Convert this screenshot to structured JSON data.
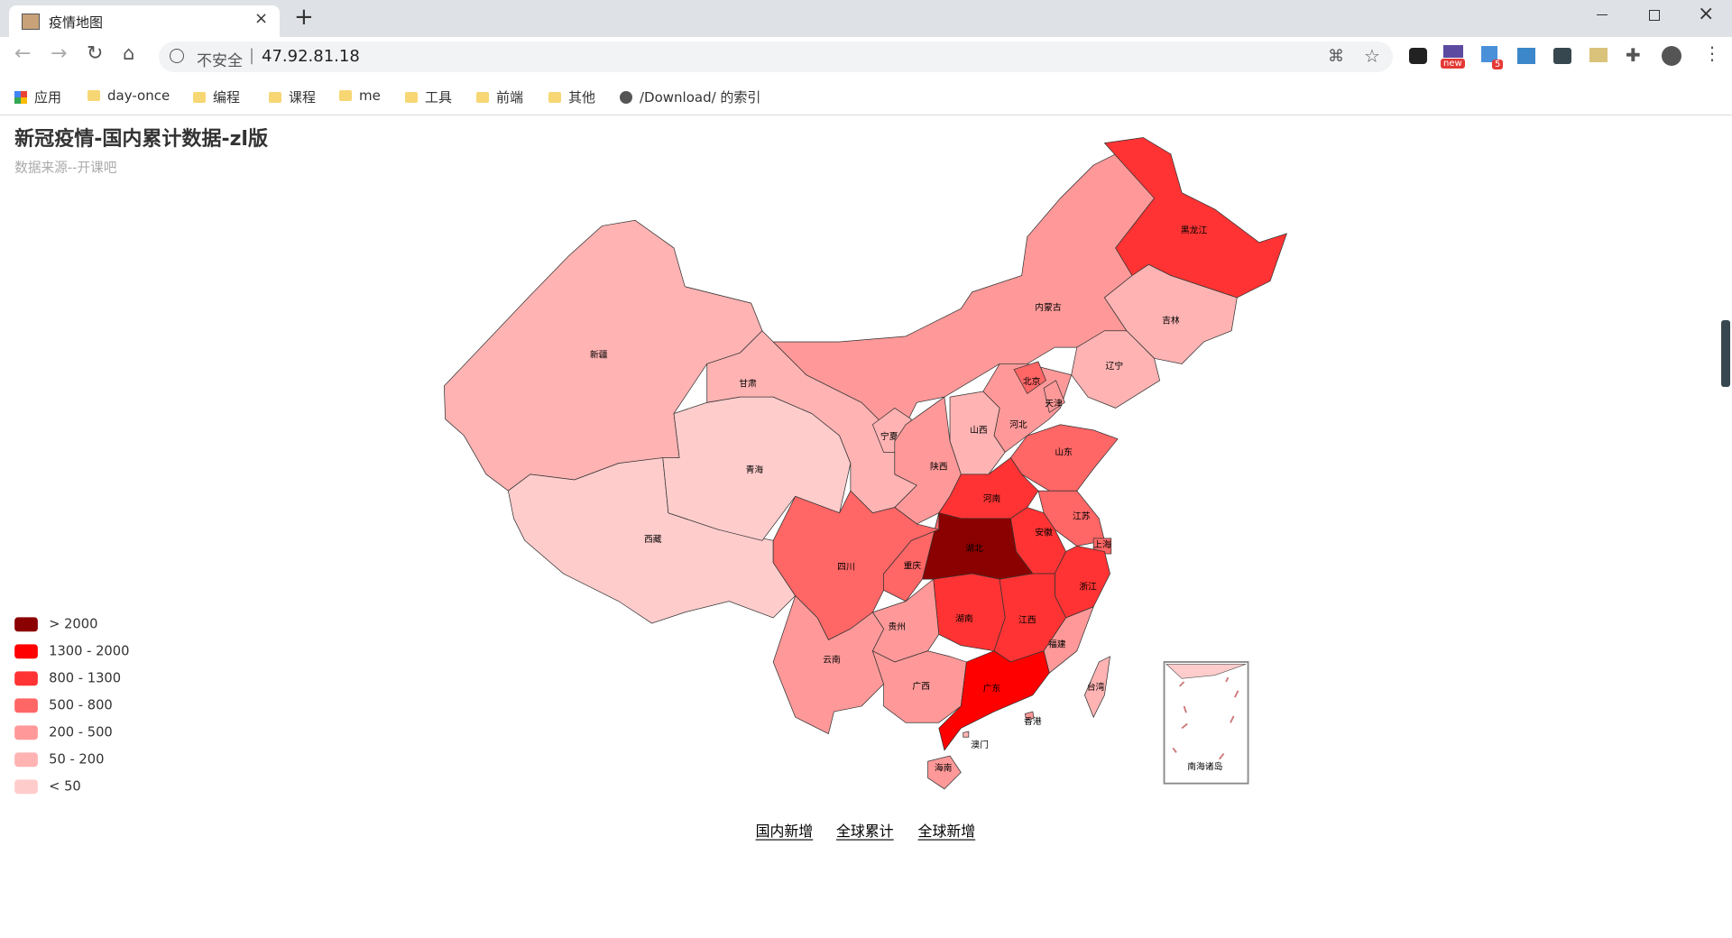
{
  "browser": {
    "tab_title": "疫情地图",
    "security": "不安全",
    "url": "47.92.81.18",
    "badges": [
      "new",
      "5"
    ],
    "bookmarks": [
      "应用",
      "day-once",
      "编程",
      "课程",
      "me",
      "工具",
      "前端",
      "其他",
      "/Download/ 的索引"
    ]
  },
  "page": {
    "title": "新冠疫情-国内累计数据-zl版",
    "subtitle": "数据来源--开课吧",
    "legend": [
      {
        "label": "> 2000",
        "color": "#8b0000"
      },
      {
        "label": "1300 - 2000",
        "color": "#ff0000"
      },
      {
        "label": "800 - 1300",
        "color": "#ff3333"
      },
      {
        "label": "500 - 800",
        "color": "#ff6666"
      },
      {
        "label": "200 - 500",
        "color": "#ff9999"
      },
      {
        "label": "50 - 200",
        "color": "#ffb3b3"
      },
      {
        "label": "< 50",
        "color": "#ffcccc"
      }
    ],
    "provinces": [
      {
        "name": "新疆",
        "color": "#ffb3b3"
      },
      {
        "name": "西藏",
        "color": "#ffcccc"
      },
      {
        "name": "青海",
        "color": "#ffcccc"
      },
      {
        "name": "甘肃",
        "color": "#ffb3b3"
      },
      {
        "name": "内蒙古",
        "color": "#ff9999"
      },
      {
        "name": "黑龙江",
        "color": "#ff3333"
      },
      {
        "name": "吉林",
        "color": "#ffb3b3"
      },
      {
        "name": "辽宁",
        "color": "#ffb3b3"
      },
      {
        "name": "河北",
        "color": "#ff9999"
      },
      {
        "name": "北京",
        "color": "#ff6666"
      },
      {
        "name": "天津",
        "color": "#ff9999"
      },
      {
        "name": "山西",
        "color": "#ffb3b3"
      },
      {
        "name": "山东",
        "color": "#ff6666"
      },
      {
        "name": "宁夏",
        "color": "#ffb3b3"
      },
      {
        "name": "陕西",
        "color": "#ff9999"
      },
      {
        "name": "河南",
        "color": "#ff3333"
      },
      {
        "name": "江苏",
        "color": "#ff6666"
      },
      {
        "name": "安徽",
        "color": "#ff3333"
      },
      {
        "name": "上海",
        "color": "#ff6666"
      },
      {
        "name": "浙江",
        "color": "#ff3333"
      },
      {
        "name": "湖北",
        "color": "#8b0000"
      },
      {
        "name": "重庆",
        "color": "#ff6666"
      },
      {
        "name": "四川",
        "color": "#ff6666"
      },
      {
        "name": "湖南",
        "color": "#ff3333"
      },
      {
        "name": "江西",
        "color": "#ff3333"
      },
      {
        "name": "福建",
        "color": "#ff9999"
      },
      {
        "name": "贵州",
        "color": "#ff9999"
      },
      {
        "name": "云南",
        "color": "#ff9999"
      },
      {
        "name": "广西",
        "color": "#ff9999"
      },
      {
        "name": "广东",
        "color": "#ff0000"
      },
      {
        "name": "海南",
        "color": "#ff9999"
      },
      {
        "name": "台湾",
        "color": "#ffb3b3"
      },
      {
        "name": "香港",
        "color": "#ff9999"
      },
      {
        "name": "澳门",
        "color": "#ffb3b3"
      }
    ],
    "inset_label": "南海诸岛",
    "links": [
      "国内新增",
      "全球累计",
      "全球新增"
    ]
  }
}
